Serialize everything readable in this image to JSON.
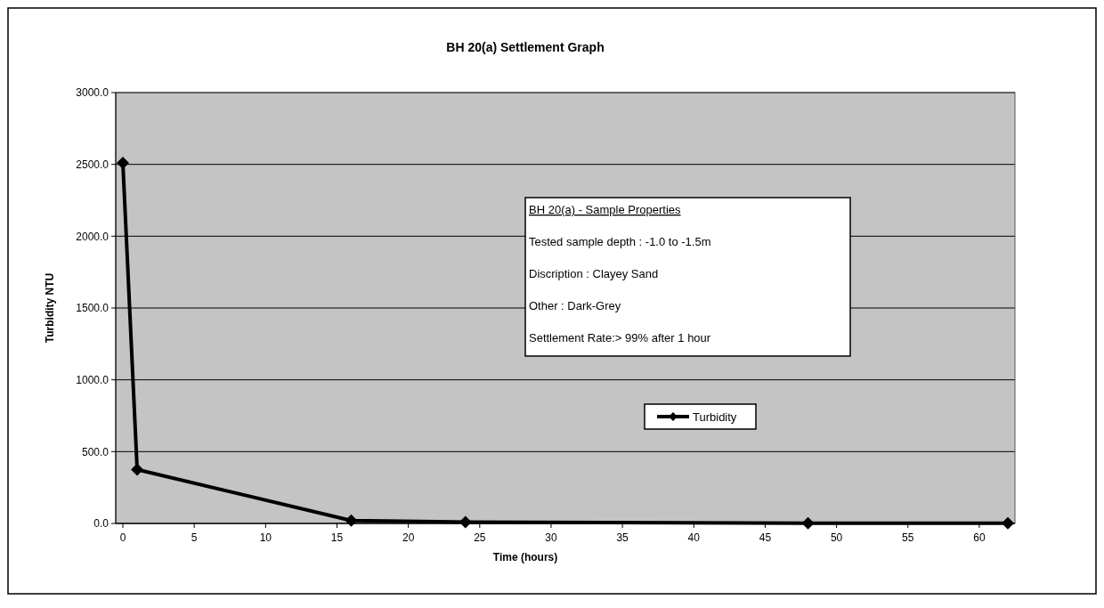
{
  "chart_data": {
    "type": "line",
    "title": "BH 20(a) Settlement Graph",
    "xlabel": "Time (hours)",
    "ylabel": "Turbidity NTU",
    "x": [
      0,
      1,
      16,
      24,
      48,
      62
    ],
    "series": [
      {
        "name": "Turbidity",
        "color": "#000000",
        "values": [
          2510,
          375,
          20,
          10,
          2,
          2
        ]
      }
    ],
    "xlim": [
      -0.5,
      62.5
    ],
    "xticks": [
      0,
      5,
      10,
      15,
      20,
      25,
      30,
      35,
      40,
      45,
      50,
      55,
      60
    ],
    "ylim": [
      0,
      3000
    ],
    "yticks": [
      {
        "value": 0,
        "label": "0.0"
      },
      {
        "value": 500,
        "label": "500.0"
      },
      {
        "value": 1000,
        "label": "1000.0"
      },
      {
        "value": 1500,
        "label": "1500.0"
      },
      {
        "value": 2000,
        "label": "2000.0"
      },
      {
        "value": 2500,
        "label": "2500.0"
      },
      {
        "value": 3000,
        "label": "3000.0"
      }
    ],
    "grid": "y",
    "legend": "bottom",
    "marker": "diamond",
    "line_style": "solid",
    "annotations": [
      "BH 20(a) - Sample Properties",
      "Tested sample depth : -1.0 to -1.5m",
      "Discription : Clayey Sand",
      "Other : Dark-Grey",
      "Settlement Rate:> 99% after 1 hour"
    ]
  }
}
